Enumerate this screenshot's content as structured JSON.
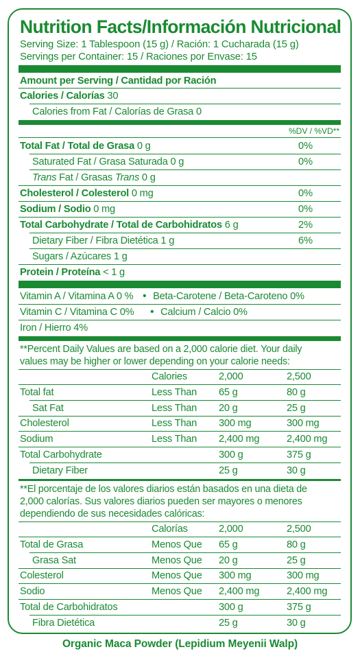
{
  "title": "Nutrition Facts/Información Nutricional",
  "serving": {
    "size": "Serving Size: 1 Tablespoon (15 g) / Ración: 1 Cucharada (15 g)",
    "per_container": "Servings per Container: 15 / Raciones por Envase: 15"
  },
  "amount_header": "Amount per Serving / Cantidad por Ración",
  "calories": {
    "label": "Calories / Calorías",
    "value": "30"
  },
  "calories_fat": "Calories from Fat / Calorías de Grasa 0",
  "dv_header": "%DV / %VD**",
  "nutrients": {
    "total_fat": {
      "label": "Total Fat / Total de Grasa",
      "amount": "0 g",
      "dv": "0%"
    },
    "sat_fat": {
      "label": "Saturated Fat / Grasa Saturada 0 g",
      "dv": "0%"
    },
    "trans_fat": {
      "trans1": "Trans",
      "mid": " Fat / Grasas ",
      "trans2": "Trans",
      "amount": " 0 g"
    },
    "cholesterol": {
      "label": "Cholesterol / Colesterol",
      "amount": "0 mg",
      "dv": "0%"
    },
    "sodium": {
      "label": "Sodium / Sodio",
      "amount": "0 mg",
      "dv": "0%"
    },
    "carbs": {
      "label": "Total Carbohydrate / Total de Carbohidratos",
      "amount": "6 g",
      "dv": "2%"
    },
    "fiber": {
      "label": "Dietary Fiber / Fibra Dietética 1 g",
      "dv": "6%"
    },
    "sugars": {
      "label": "Sugars / Azúcares 1 g"
    },
    "protein": {
      "label": "Protein / Proteína",
      "amount": "< 1 g"
    }
  },
  "vitamins": {
    "vit_a": "Vitamin A / Vitamina A 0 %",
    "beta": "Beta-Carotene / Beta-Caroteno 0%",
    "vit_c": "Vitamin C / Vitamina C 0%",
    "calcium": "Calcium / Calcio 0%",
    "iron": "Iron / Hierro 4%",
    "bullet": "•"
  },
  "footnote_en": {
    "line1": "**Percent Daily Values are based on a 2,000 calorie diet. Your daily",
    "line2": "values may be higher or lower depending on your calorie needs:",
    "header": [
      "Calories",
      "2,000",
      "2,500"
    ],
    "rows": [
      [
        "Total fat",
        "Less Than",
        "65 g",
        "80 g"
      ],
      [
        "Sat Fat",
        "Less Than",
        "20 g",
        "25 g"
      ],
      [
        "Cholesterol",
        "Less Than",
        "300 mg",
        "300 mg"
      ],
      [
        "Sodium",
        "Less Than",
        "2,400 mg",
        "2,400 mg"
      ],
      [
        "Total Carbohydrate",
        "",
        "300 g",
        "375 g"
      ],
      [
        "Dietary Fiber",
        "",
        "25 g",
        "30 g"
      ]
    ]
  },
  "footnote_es": {
    "line1": "**El porcentaje de los valores diarios están basados en una dieta de",
    "line2": "2,000 calorías. Sus valores diarios pueden ser mayores o menores",
    "line3": "dependiendo de sus necesidades calóricas:",
    "header": [
      "Calorías",
      "2,000",
      "2,500"
    ],
    "rows": [
      [
        "Total de Grasa",
        "Menos Que",
        "65 g",
        "80 g"
      ],
      [
        "Grasa Sat",
        "Menos Que",
        "20 g",
        "25 g"
      ],
      [
        "Colesterol",
        "Menos Que",
        "300 mg",
        "300 mg"
      ],
      [
        "Sodio",
        "Menos Que",
        "2,400 mg",
        "2,400 mg"
      ],
      [
        "Total de Carbohidratos",
        "",
        "300 g",
        "375 g"
      ],
      [
        "Fibra Dietética",
        "",
        "25 g",
        "30 g"
      ]
    ]
  },
  "product_name": "Organic Maca Powder (Lepidium Meyenii Walp)",
  "colors": {
    "accent": "#1a8a32",
    "background": "#ffffff"
  }
}
